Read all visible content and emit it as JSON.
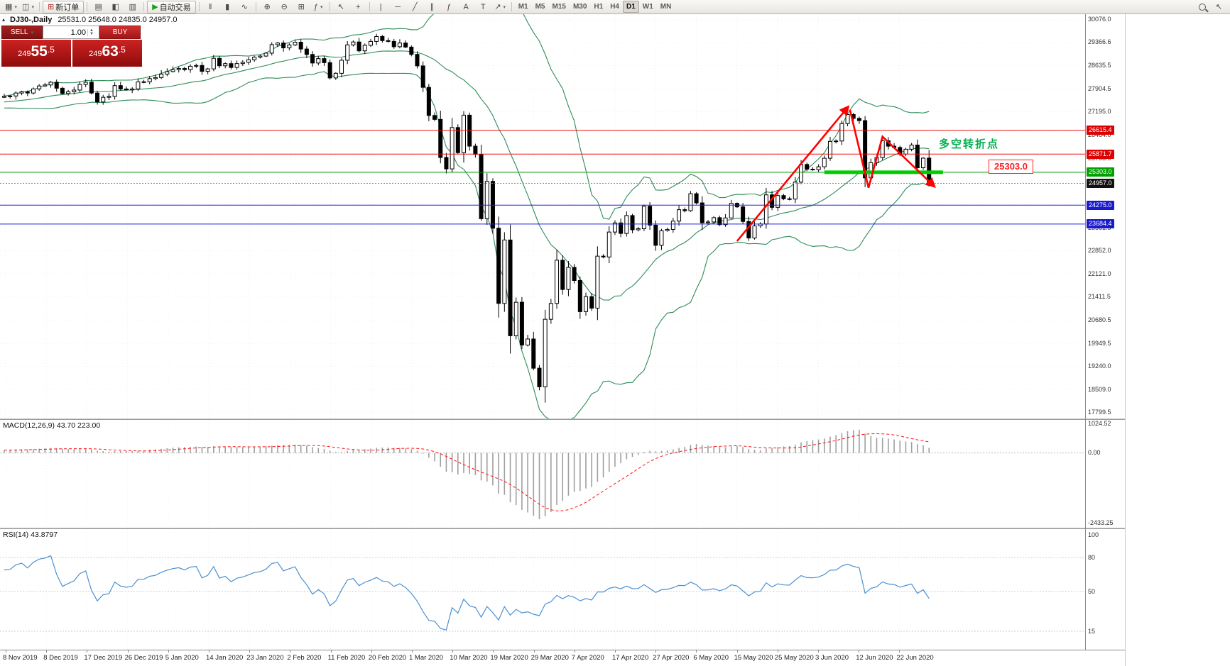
{
  "toolbar": {
    "items": [
      {
        "type": "icon",
        "name": "new-chart",
        "glyph": "▦",
        "caret": true
      },
      {
        "type": "icon",
        "name": "profiles",
        "glyph": "◫",
        "caret": true
      },
      {
        "type": "sep"
      },
      {
        "type": "button",
        "name": "new-order",
        "label": "新订单",
        "glyph": "⊞",
        "glyph_color": "#b03030"
      },
      {
        "type": "sep"
      },
      {
        "type": "icon",
        "name": "market-watch",
        "glyph": "▤"
      },
      {
        "type": "icon",
        "name": "navigator",
        "glyph": "◧"
      },
      {
        "type": "icon",
        "name": "terminal",
        "glyph": "▥"
      },
      {
        "type": "sep"
      },
      {
        "type": "button",
        "name": "autotrading",
        "label": "自动交易",
        "glyph": "▶",
        "glyph_color": "#18a018"
      },
      {
        "type": "sep"
      },
      {
        "type": "icon",
        "name": "bar-chart-mode",
        "glyph": "‖"
      },
      {
        "type": "icon",
        "name": "candlestick-mode",
        "glyph": "▮"
      },
      {
        "type": "icon",
        "name": "line-chart-mode",
        "glyph": "∿"
      },
      {
        "type": "sep"
      },
      {
        "type": "icon",
        "name": "zoom-in",
        "glyph": "⊕"
      },
      {
        "type": "icon",
        "name": "zoom-out",
        "glyph": "⊖"
      },
      {
        "type": "icon",
        "name": "tile-windows",
        "glyph": "⊞"
      },
      {
        "type": "icon",
        "name": "indicators-list",
        "glyph": "ƒ",
        "caret": true
      },
      {
        "type": "sep"
      },
      {
        "type": "icon",
        "name": "cursor",
        "glyph": "↖"
      },
      {
        "type": "icon",
        "name": "crosshair",
        "glyph": "+"
      },
      {
        "type": "sep"
      },
      {
        "type": "icon",
        "name": "vertical-line-tool",
        "glyph": "|"
      },
      {
        "type": "icon",
        "name": "horizontal-line-tool",
        "glyph": "─"
      },
      {
        "type": "icon",
        "name": "trendline-tool",
        "glyph": "╱"
      },
      {
        "type": "icon",
        "name": "channel-tool",
        "glyph": "∥"
      },
      {
        "type": "icon",
        "name": "fibonacci-tool",
        "glyph": "ƒ"
      },
      {
        "type": "icon",
        "name": "text-tool",
        "glyph": "A"
      },
      {
        "type": "icon",
        "name": "label-tool",
        "glyph": "T"
      },
      {
        "type": "icon",
        "name": "arrows-tool",
        "glyph": "↗",
        "caret": true
      },
      {
        "type": "sep"
      },
      {
        "type": "timeframes",
        "name": "timeframes",
        "labels": [
          "M1",
          "M5",
          "M15",
          "M30",
          "H1",
          "H4",
          "D1",
          "W1",
          "MN"
        ],
        "active": "D1"
      },
      {
        "type": "spacer"
      },
      {
        "type": "mag",
        "name": "search"
      },
      {
        "type": "icon",
        "name": "quick-navigation",
        "glyph": "↖"
      }
    ]
  },
  "chart": {
    "title": "DJ30-,Daily",
    "title_ohlc": "25531.0 25648.0 24835.0 24957.0",
    "collapse_glyph": "▴",
    "trade_panel": {
      "sell_label": "SELL",
      "buy_label": "BUY",
      "volume": "1.00",
      "sell_price": "24955.5",
      "buy_price": "24963.5"
    },
    "annotation": {
      "text": "多空转折点",
      "price_label": "25303.0"
    },
    "y_axis_labels": [
      30076.0,
      29366.6,
      28635.5,
      27904.5,
      27195.0,
      26464.0,
      25733.0,
      25002.0,
      24292.5,
      23561.5,
      22852.0,
      22121.0,
      21411.5,
      20680.5,
      19949.5,
      19240.0,
      18509.0,
      17799.5
    ],
    "x_axis_labels": [
      "8 Nov 2019",
      "8 Dec 2019",
      "17 Dec 2019",
      "26 Dec 2019",
      "5 Jan 2020",
      "14 Jan 2020",
      "23 Jan 2020",
      "2 Feb 2020",
      "11 Feb 2020",
      "20 Feb 2020",
      "1 Mar 2020",
      "10 Mar 2020",
      "19 Mar 2020",
      "29 Mar 2020",
      "7 Apr 2020",
      "17 Apr 2020",
      "27 Apr 2020",
      "6 May 2020",
      "15 May 2020",
      "25 May 2020",
      "3 Jun 2020",
      "12 Jun 2020",
      "22 Jun 2020"
    ],
    "h_lines": [
      {
        "price": 26615.4,
        "color": "#ee1111",
        "dash": ""
      },
      {
        "price": 25871.7,
        "color": "#ee1111",
        "dash": ""
      },
      {
        "price": 25303.0,
        "color": "#009900",
        "dash": ""
      },
      {
        "price": 24957.0,
        "color": "#888888",
        "dash": "2,2"
      },
      {
        "price": 24275.0,
        "color": "#2222dd",
        "dash": ""
      },
      {
        "price": 23684.4,
        "color": "#2222dd",
        "dash": ""
      }
    ],
    "price_badges": [
      {
        "text": "26615.4",
        "price": 26615.4,
        "bg": "#dd0000"
      },
      {
        "text": "25871.7",
        "price": 25871.7,
        "bg": "#dd0000"
      },
      {
        "text": "25303.0",
        "price": 25303.0,
        "bg": "#00a000"
      },
      {
        "text": "24957.0",
        "price": 24957.0,
        "bg": "#111111"
      },
      {
        "text": "24275.0",
        "price": 24275.0,
        "bg": "#1a1acc"
      },
      {
        "text": "23684.4",
        "price": 23684.4,
        "bg": "#1a1acc"
      }
    ]
  },
  "macd": {
    "label": "MACD(12,26,9) 43.70 223.00",
    "scale": {
      "max": "1024.52",
      "zero": "0.00",
      "min": "-2433.25"
    },
    "bar_color": "#9f9f9f",
    "signal_color": "#ff1111"
  },
  "rsi": {
    "label": "RSI(14) 43.8797",
    "color": "#4a90d2",
    "levels": [
      80,
      50,
      15
    ],
    "axis_labels": [
      "100",
      "80",
      "50",
      "15"
    ]
  },
  "chart_data": {
    "type": "candlestick",
    "symbol": "DJ30-",
    "timeframe": "Daily",
    "last_ohlc": {
      "open": 25531.0,
      "high": 25648.0,
      "low": 24835.0,
      "close": 24957.0
    },
    "first_open": 27650,
    "closes": [
      27681,
      27691,
      27783,
      27821,
      27783,
      27912,
      28004,
      28036,
      28121,
      27934,
      27766,
      27821,
      27876,
      28051,
      28121,
      27783,
      27503,
      27650,
      27677,
      28015,
      27910,
      27881,
      27911,
      28132,
      28135,
      28235,
      28267,
      28376,
      28455,
      28515,
      28551,
      28516,
      28621,
      28645,
      28462,
      28538,
      28869,
      28635,
      28703,
      28583,
      28704,
      28745,
      28824,
      28907,
      28939,
      29031,
      29297,
      29348,
      29196,
      29288,
      29373,
      29160,
      28990,
      28722,
      28860,
      28734,
      28256,
      28400,
      28808,
      29290,
      29380,
      29103,
      29277,
      29398,
      29551,
      29423,
      29398,
      29232,
      29348,
      29220,
      28992,
      28632,
      27961,
      27081,
      26958,
      25767,
      25409,
      26703,
      25917,
      27090,
      26121,
      25865,
      23851,
      25018,
      23553,
      21200,
      23185,
      20188,
      21237,
      19898,
      20087,
      19173,
      18591,
      20704,
      21200,
      22552,
      21636,
      22327,
      21917,
      20943,
      21413,
      21052,
      22679,
      22653,
      23433,
      23719,
      23390,
      23949,
      23504,
      23537,
      24242,
      23650,
      23018,
      23475,
      23515,
      23775,
      24133,
      24101,
      24633,
      24345,
      23723,
      23749,
      23883,
      23664,
      23875,
      24331,
      24222,
      23764,
      23247,
      23625,
      23685,
      24597,
      24206,
      24575,
      24474,
      24465,
      24995,
      25548,
      25400,
      25383,
      25475,
      25743,
      26270,
      26282,
      26826,
      27110,
      26989,
      26920,
      25128,
      25605,
      25763,
      26290,
      26120,
      26080,
      25871,
      26025,
      26156,
      25445,
      25746,
      24957
    ],
    "indicators": {
      "bollinger": {
        "period": 20,
        "deviation": 2,
        "color": "#2e8b57"
      },
      "macd": {
        "fast": 12,
        "slow": 26,
        "signal": 9
      },
      "rsi": {
        "period": 14,
        "last_value": 43.8797
      }
    },
    "key_levels": {
      "resistance": [
        26615.4,
        25871.7
      ],
      "pivot": 25303.0,
      "support": [
        24275.0,
        23684.4
      ],
      "current": 24957.0
    },
    "thick_segment": {
      "from": 141,
      "to": 161.4,
      "price": 25303.0,
      "color": "#00cc00",
      "width": 5
    },
    "trend_annotation": {
      "color": "#ff0000",
      "segments": [
        {
          "points": [
            [
              126,
              23150
            ],
            [
              145,
              27330
            ]
          ],
          "arrow_end": true
        },
        {
          "points": [
            [
              145.4,
              27260
            ],
            [
              148.6,
              24820
            ],
            [
              151,
              26420
            ],
            [
              159.8,
              24880
            ]
          ],
          "arrow_end": true
        }
      ]
    }
  }
}
